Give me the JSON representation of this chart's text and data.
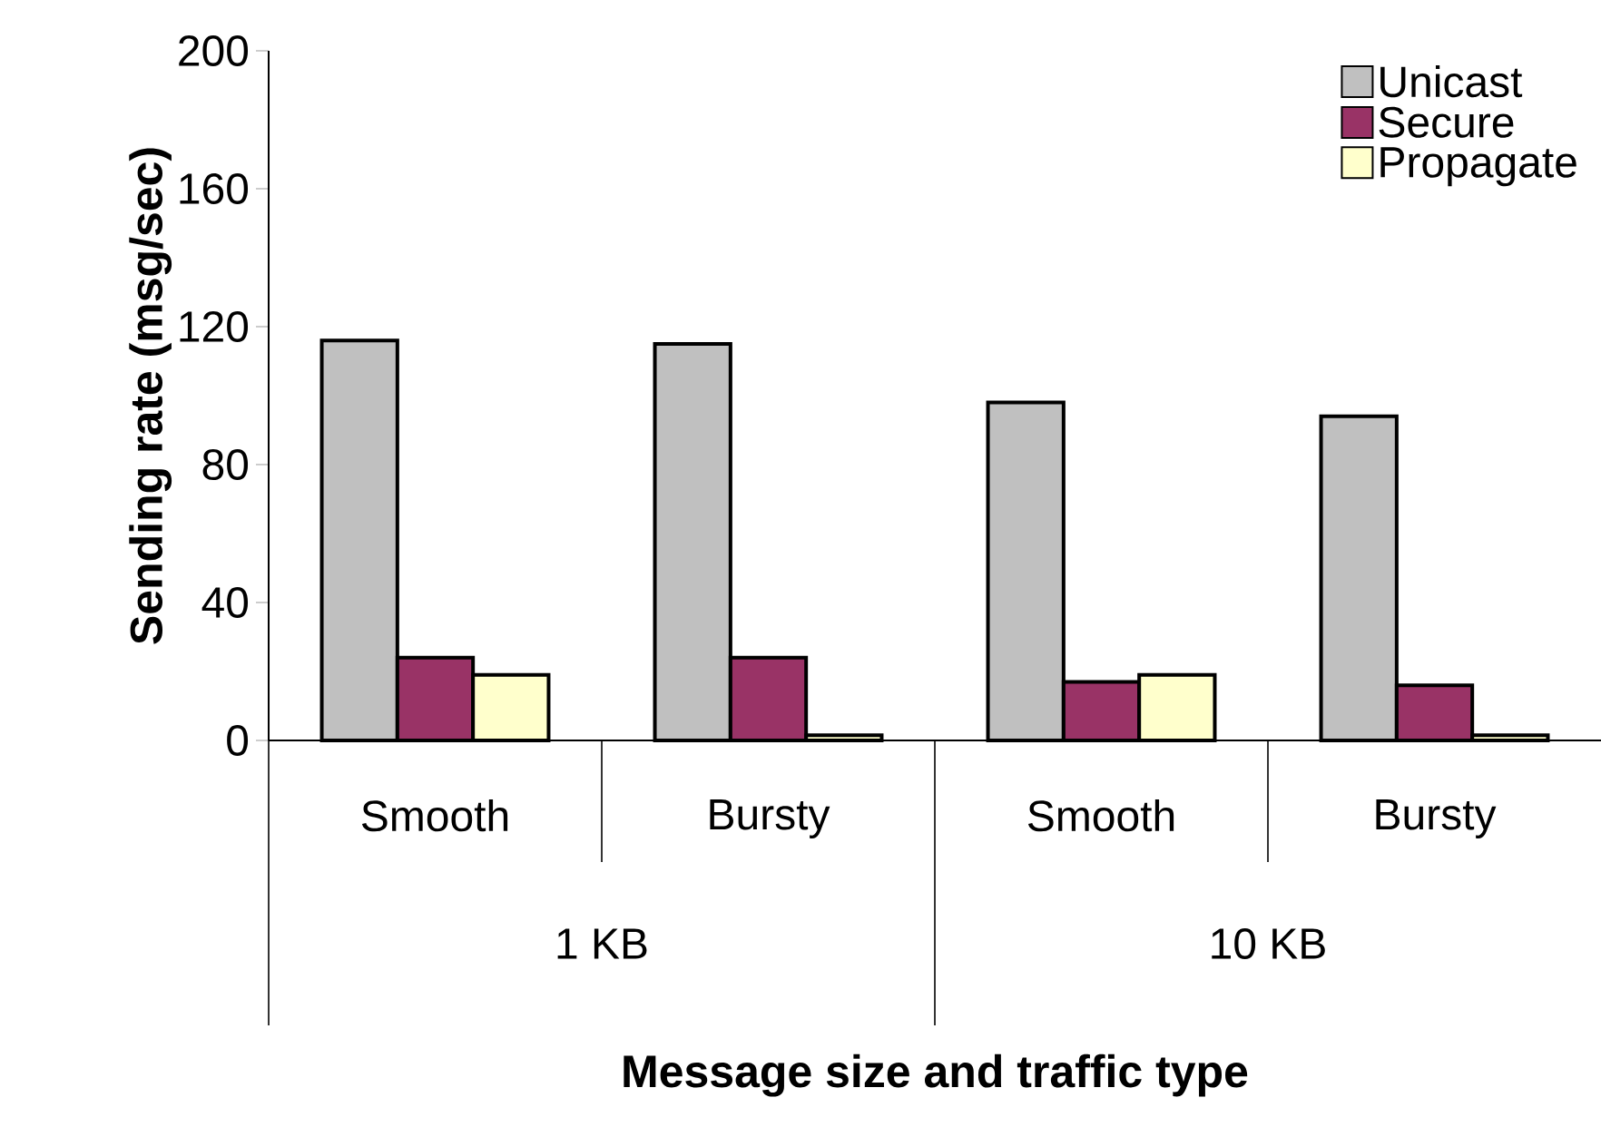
{
  "chart_data": {
    "type": "bar",
    "xlabel": "Message size and traffic type",
    "ylabel": "Sending rate (msg/sec)",
    "categories": [
      "Smooth",
      "Bursty",
      "Smooth",
      "Bursty"
    ],
    "series": [
      {
        "name": "Unicast",
        "color": "#c0c0c0",
        "values": [
          116,
          115,
          98,
          94
        ]
      },
      {
        "name": "Secure",
        "color": "#993366",
        "values": [
          24,
          24,
          17,
          16
        ]
      },
      {
        "name": "Propagate",
        "color": "#ffffcc",
        "values": [
          19,
          1.5,
          19,
          1.5
        ]
      }
    ],
    "annotations": [
      "1 KB",
      "10 KB"
    ],
    "ylim": [
      0,
      200
    ],
    "yticks": [
      0,
      40,
      80,
      120,
      160,
      200
    ],
    "grid": false,
    "legend": "top right"
  }
}
